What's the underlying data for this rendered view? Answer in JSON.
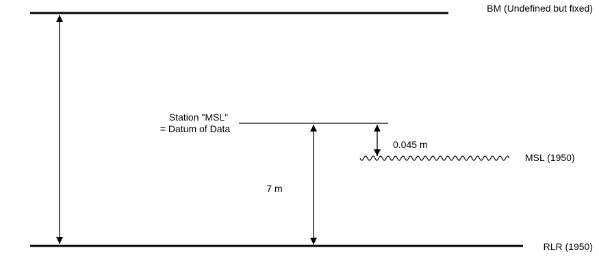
{
  "labels": {
    "bm": "BM (Undefined but fixed)",
    "station_line1": "Station \"MSL\"",
    "station_line2": "= Datum of Data",
    "offset": "0.045 m",
    "msl": "MSL (1950)",
    "height": "7 m",
    "rlr": "RLR (1950)"
  },
  "colors": {
    "line": "#000000",
    "background": "#ffffff"
  }
}
